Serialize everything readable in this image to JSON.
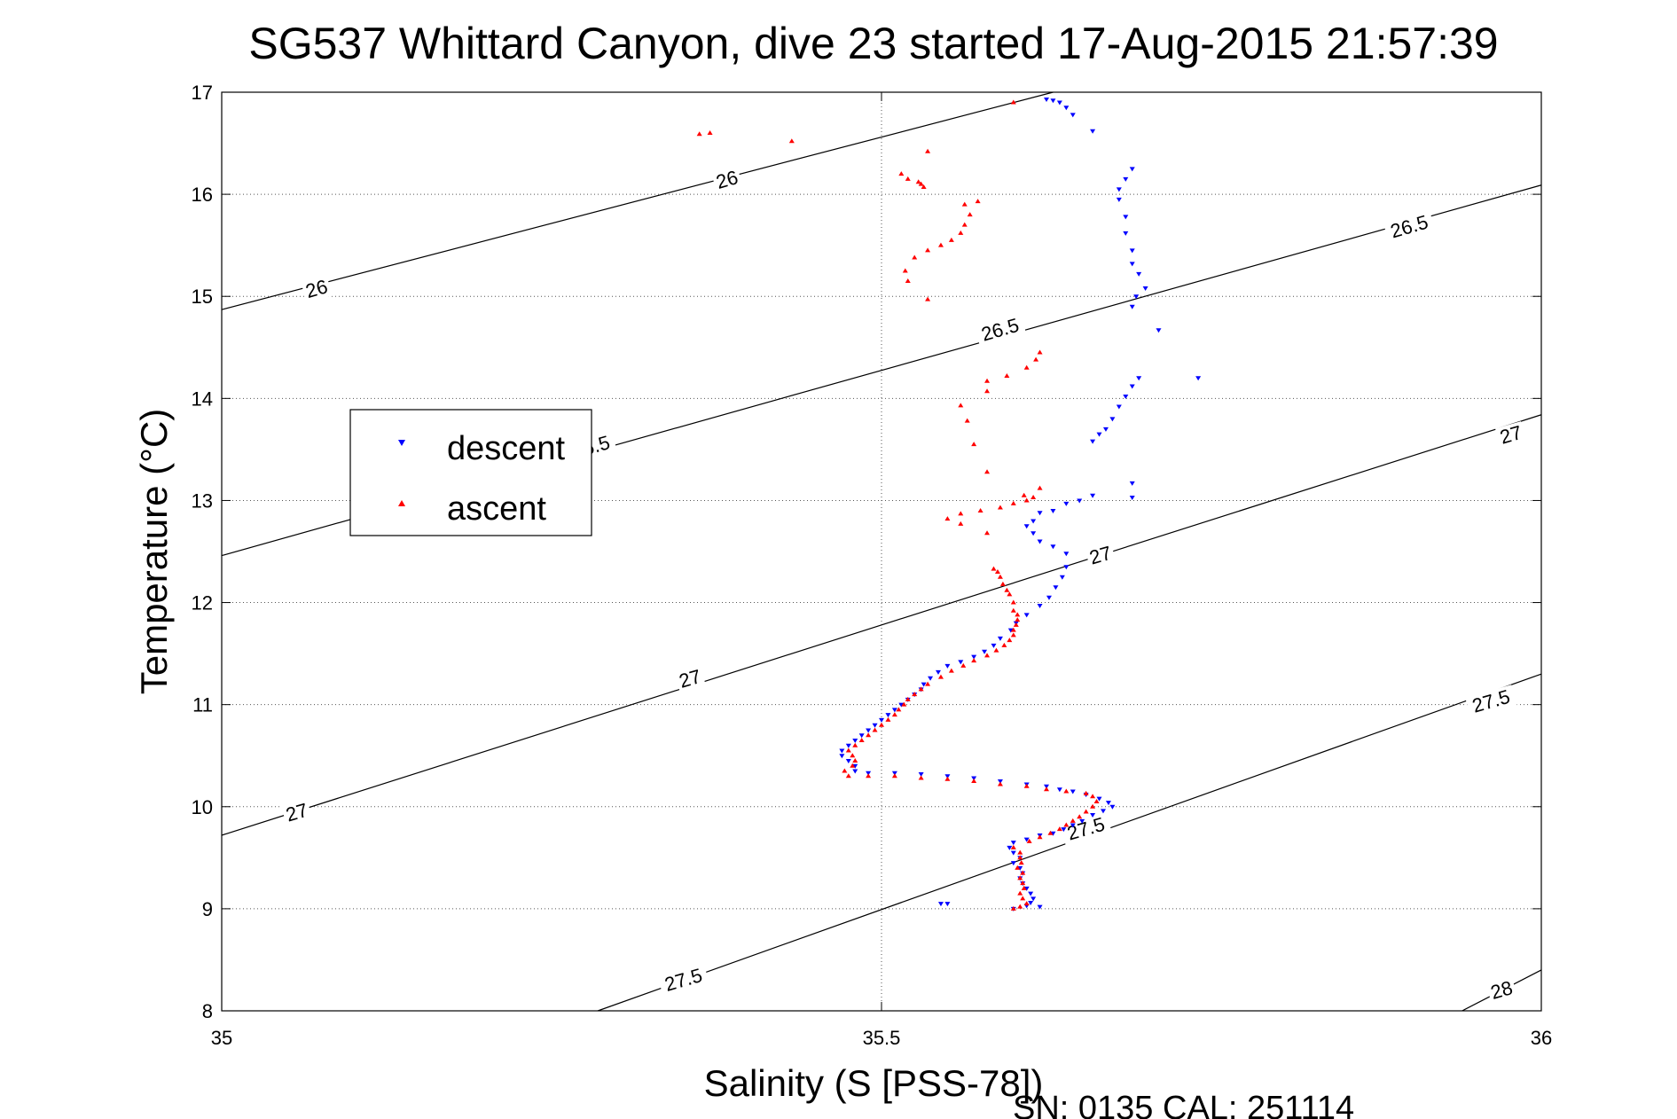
{
  "chart_data": {
    "type": "scatter",
    "title": "SG537 Whittard Canyon, dive 23 started 17-Aug-2015 21:57:39",
    "xlabel": "Salinity (S [PSS-78])",
    "ylabel": "Temperature (°C)",
    "footer": "SN: 0135  CAL: 251114",
    "xlim": [
      35,
      36
    ],
    "ylim": [
      8,
      17
    ],
    "xticks": [
      "35",
      "35.5",
      "36"
    ],
    "yticks": [
      "8",
      "9",
      "10",
      "11",
      "12",
      "13",
      "14",
      "15",
      "16",
      "17"
    ],
    "grid": true,
    "legend_position": "left-middle",
    "density_contours": [
      {
        "label": "26",
        "x": [
          35,
          35.63
        ],
        "y": [
          14.87,
          17.0
        ]
      },
      {
        "label": "26.5",
        "x": [
          35,
          36
        ],
        "y": [
          12.46,
          16.09
        ]
      },
      {
        "label": "27",
        "x": [
          35,
          36
        ],
        "y": [
          9.72,
          13.84
        ]
      },
      {
        "label": "27.5",
        "x": [
          35.285,
          36
        ],
        "y": [
          8.0,
          11.3
        ]
      },
      {
        "label": "28",
        "x": [
          35.94,
          36
        ],
        "y": [
          8.0,
          8.4
        ]
      }
    ],
    "contour_labels": [
      {
        "text": "26",
        "x": 35.072,
        "y": 15.07
      },
      {
        "text": "26",
        "x": 35.383,
        "y": 16.14
      },
      {
        "text": "26.5",
        "x": 35.28,
        "y": 13.52
      },
      {
        "text": "26.5",
        "x": 35.59,
        "y": 14.67
      },
      {
        "text": "26.5",
        "x": 35.9,
        "y": 15.68
      },
      {
        "text": "27",
        "x": 35.057,
        "y": 9.94
      },
      {
        "text": "27",
        "x": 35.355,
        "y": 11.25
      },
      {
        "text": "27",
        "x": 35.666,
        "y": 12.46
      },
      {
        "text": "27",
        "x": 35.977,
        "y": 13.64
      },
      {
        "text": "27.5",
        "x": 35.35,
        "y": 8.3
      },
      {
        "text": "27.5",
        "x": 35.655,
        "y": 9.78
      },
      {
        "text": "27.5",
        "x": 35.962,
        "y": 11.03
      },
      {
        "text": "28",
        "x": 35.97,
        "y": 8.2
      }
    ],
    "series": [
      {
        "name": "descent",
        "color": "#0000ff",
        "marker": "down-triangle",
        "points": [
          [
            35.625,
            16.93
          ],
          [
            35.63,
            16.92
          ],
          [
            35.635,
            16.9
          ],
          [
            35.64,
            16.85
          ],
          [
            35.645,
            16.78
          ],
          [
            35.66,
            16.62
          ],
          [
            35.69,
            16.25
          ],
          [
            35.685,
            16.15
          ],
          [
            35.68,
            16.05
          ],
          [
            35.68,
            15.95
          ],
          [
            35.685,
            15.78
          ],
          [
            35.685,
            15.62
          ],
          [
            35.69,
            15.45
          ],
          [
            35.69,
            15.32
          ],
          [
            35.695,
            15.22
          ],
          [
            35.7,
            15.08
          ],
          [
            35.693,
            15.0
          ],
          [
            35.69,
            14.9
          ],
          [
            35.71,
            14.67
          ],
          [
            35.74,
            14.2
          ],
          [
            35.695,
            14.2
          ],
          [
            35.69,
            14.12
          ],
          [
            35.685,
            14.02
          ],
          [
            35.68,
            13.92
          ],
          [
            35.675,
            13.8
          ],
          [
            35.665,
            13.65
          ],
          [
            35.66,
            13.58
          ],
          [
            35.67,
            13.7
          ],
          [
            35.69,
            13.17
          ],
          [
            35.69,
            13.03
          ],
          [
            35.66,
            13.05
          ],
          [
            35.65,
            13.0
          ],
          [
            35.64,
            12.97
          ],
          [
            35.63,
            12.9
          ],
          [
            35.62,
            12.88
          ],
          [
            35.615,
            12.8
          ],
          [
            35.61,
            12.75
          ],
          [
            35.615,
            12.68
          ],
          [
            35.62,
            12.6
          ],
          [
            35.63,
            12.55
          ],
          [
            35.64,
            12.48
          ],
          [
            35.64,
            12.35
          ],
          [
            35.637,
            12.25
          ],
          [
            35.632,
            12.15
          ],
          [
            35.627,
            12.05
          ],
          [
            35.62,
            11.97
          ],
          [
            35.61,
            11.88
          ],
          [
            35.602,
            11.8
          ],
          [
            35.598,
            11.73
          ],
          [
            35.59,
            11.65
          ],
          [
            35.585,
            11.58
          ],
          [
            35.578,
            11.52
          ],
          [
            35.57,
            11.47
          ],
          [
            35.56,
            11.42
          ],
          [
            35.55,
            11.38
          ],
          [
            35.543,
            11.32
          ],
          [
            35.537,
            11.26
          ],
          [
            35.532,
            11.2
          ],
          [
            35.53,
            11.15
          ],
          [
            35.525,
            11.1
          ],
          [
            35.52,
            11.05
          ],
          [
            35.515,
            11.0
          ],
          [
            35.51,
            10.95
          ],
          [
            35.505,
            10.9
          ],
          [
            35.5,
            10.85
          ],
          [
            35.495,
            10.8
          ],
          [
            35.49,
            10.75
          ],
          [
            35.485,
            10.7
          ],
          [
            35.48,
            10.65
          ],
          [
            35.475,
            10.6
          ],
          [
            35.47,
            10.55
          ],
          [
            35.47,
            10.5
          ],
          [
            35.475,
            10.45
          ],
          [
            35.48,
            10.4
          ],
          [
            35.48,
            10.35
          ],
          [
            35.49,
            10.33
          ],
          [
            35.51,
            10.33
          ],
          [
            35.53,
            10.32
          ],
          [
            35.55,
            10.3
          ],
          [
            35.57,
            10.28
          ],
          [
            35.59,
            10.25
          ],
          [
            35.61,
            10.22
          ],
          [
            35.625,
            10.2
          ],
          [
            35.635,
            10.17
          ],
          [
            35.645,
            10.15
          ],
          [
            35.655,
            10.12
          ],
          [
            35.665,
            10.08
          ],
          [
            35.672,
            10.04
          ],
          [
            35.675,
            10.0
          ],
          [
            35.668,
            9.96
          ],
          [
            35.66,
            9.92
          ],
          [
            35.652,
            9.86
          ],
          [
            35.645,
            9.82
          ],
          [
            35.638,
            9.78
          ],
          [
            35.63,
            9.74
          ],
          [
            35.62,
            9.72
          ],
          [
            35.61,
            9.68
          ],
          [
            35.6,
            9.65
          ],
          [
            35.597,
            9.6
          ],
          [
            35.6,
            9.55
          ],
          [
            35.605,
            9.5
          ],
          [
            35.6,
            9.45
          ],
          [
            35.605,
            9.4
          ],
          [
            35.607,
            9.35
          ],
          [
            35.605,
            9.3
          ],
          [
            35.607,
            9.25
          ],
          [
            35.61,
            9.2
          ],
          [
            35.613,
            9.15
          ],
          [
            35.615,
            9.1
          ],
          [
            35.613,
            9.06
          ],
          [
            35.61,
            9.03
          ],
          [
            35.62,
            9.02
          ],
          [
            35.6,
            9.0
          ],
          [
            35.545,
            9.05
          ],
          [
            35.55,
            9.05
          ]
        ]
      },
      {
        "name": "ascent",
        "color": "#ff0000",
        "marker": "up-triangle",
        "points": [
          [
            35.6,
            9.0
          ],
          [
            35.605,
            9.02
          ],
          [
            35.61,
            9.05
          ],
          [
            35.607,
            9.1
          ],
          [
            35.605,
            9.15
          ],
          [
            35.608,
            9.2
          ],
          [
            35.607,
            9.25
          ],
          [
            35.605,
            9.3
          ],
          [
            35.607,
            9.35
          ],
          [
            35.603,
            9.4
          ],
          [
            35.606,
            9.45
          ],
          [
            35.605,
            9.5
          ],
          [
            35.605,
            9.55
          ],
          [
            35.6,
            9.6
          ],
          [
            35.612,
            9.66
          ],
          [
            35.62,
            9.7
          ],
          [
            35.628,
            9.74
          ],
          [
            35.635,
            9.78
          ],
          [
            35.64,
            9.82
          ],
          [
            35.645,
            9.86
          ],
          [
            35.65,
            9.9
          ],
          [
            35.655,
            9.95
          ],
          [
            35.66,
            10.0
          ],
          [
            35.663,
            10.05
          ],
          [
            35.66,
            10.1
          ],
          [
            35.655,
            10.13
          ],
          [
            35.64,
            10.15
          ],
          [
            35.625,
            10.17
          ],
          [
            35.61,
            10.2
          ],
          [
            35.59,
            10.22
          ],
          [
            35.57,
            10.25
          ],
          [
            35.55,
            10.27
          ],
          [
            35.53,
            10.28
          ],
          [
            35.51,
            10.3
          ],
          [
            35.49,
            10.3
          ],
          [
            35.475,
            10.3
          ],
          [
            35.472,
            10.35
          ],
          [
            35.478,
            10.4
          ],
          [
            35.48,
            10.45
          ],
          [
            35.478,
            10.5
          ],
          [
            35.475,
            10.55
          ],
          [
            35.48,
            10.6
          ],
          [
            35.485,
            10.65
          ],
          [
            35.49,
            10.7
          ],
          [
            35.495,
            10.75
          ],
          [
            35.5,
            10.8
          ],
          [
            35.505,
            10.85
          ],
          [
            35.51,
            10.9
          ],
          [
            35.513,
            10.95
          ],
          [
            35.517,
            11.0
          ],
          [
            35.52,
            11.05
          ],
          [
            35.525,
            11.1
          ],
          [
            35.53,
            11.15
          ],
          [
            35.535,
            11.2
          ],
          [
            35.545,
            11.27
          ],
          [
            35.553,
            11.33
          ],
          [
            35.562,
            11.38
          ],
          [
            35.57,
            11.43
          ],
          [
            35.58,
            11.48
          ],
          [
            35.587,
            11.53
          ],
          [
            35.593,
            11.58
          ],
          [
            35.597,
            11.63
          ],
          [
            35.6,
            11.68
          ],
          [
            35.6,
            11.73
          ],
          [
            35.602,
            11.78
          ],
          [
            35.603,
            11.83
          ],
          [
            35.603,
            11.88
          ],
          [
            35.6,
            11.92
          ],
          [
            35.6,
            12.0
          ],
          [
            35.597,
            12.08
          ],
          [
            35.595,
            12.12
          ],
          [
            35.592,
            12.18
          ],
          [
            35.59,
            12.25
          ],
          [
            35.588,
            12.3
          ],
          [
            35.585,
            12.33
          ],
          [
            35.58,
            12.68
          ],
          [
            35.56,
            12.77
          ],
          [
            35.55,
            12.82
          ],
          [
            35.56,
            12.87
          ],
          [
            35.575,
            12.9
          ],
          [
            35.59,
            12.93
          ],
          [
            35.6,
            12.97
          ],
          [
            35.61,
            13.0
          ],
          [
            35.615,
            13.03
          ],
          [
            35.608,
            13.05
          ],
          [
            35.62,
            13.12
          ],
          [
            35.58,
            13.28
          ],
          [
            35.57,
            13.55
          ],
          [
            35.565,
            13.78
          ],
          [
            35.56,
            13.93
          ],
          [
            35.58,
            14.07
          ],
          [
            35.58,
            14.17
          ],
          [
            35.595,
            14.22
          ],
          [
            35.61,
            14.3
          ],
          [
            35.617,
            14.38
          ],
          [
            35.62,
            14.45
          ],
          [
            35.535,
            14.97
          ],
          [
            35.52,
            15.15
          ],
          [
            35.518,
            15.25
          ],
          [
            35.525,
            15.38
          ],
          [
            35.535,
            15.45
          ],
          [
            35.545,
            15.5
          ],
          [
            35.553,
            15.55
          ],
          [
            35.56,
            15.62
          ],
          [
            35.563,
            15.7
          ],
          [
            35.567,
            15.8
          ],
          [
            35.563,
            15.9
          ],
          [
            35.573,
            15.93
          ],
          [
            35.53,
            16.1
          ],
          [
            35.532,
            16.07
          ],
          [
            35.528,
            16.12
          ],
          [
            35.52,
            16.15
          ],
          [
            35.515,
            16.2
          ],
          [
            35.535,
            16.42
          ],
          [
            35.432,
            16.52
          ],
          [
            35.362,
            16.59
          ],
          [
            35.37,
            16.6
          ],
          [
            35.6,
            16.9
          ]
        ]
      }
    ]
  }
}
